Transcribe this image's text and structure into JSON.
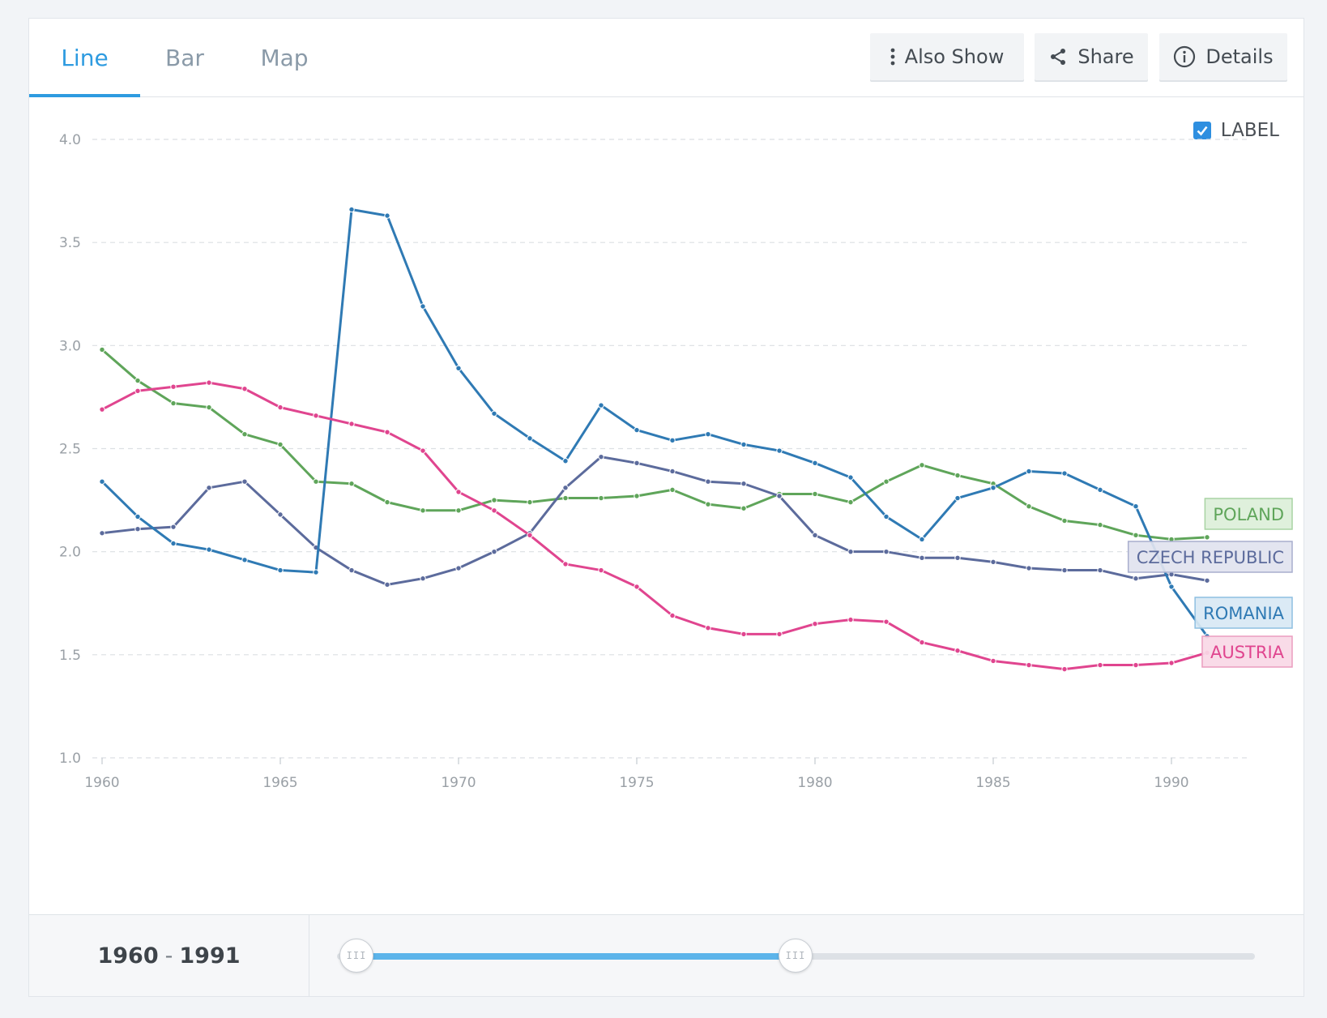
{
  "tabs": [
    {
      "label": "Line",
      "active": true
    },
    {
      "label": "Bar",
      "active": false
    },
    {
      "label": "Map",
      "active": false
    }
  ],
  "toolbar": {
    "also_show": "Also Show",
    "share": "Share",
    "details": "Details"
  },
  "label_toggle": {
    "label": "LABEL",
    "checked": true
  },
  "range": {
    "start": "1960",
    "end": "1991",
    "separator": "-"
  },
  "slider": {
    "min": 1960,
    "max": 2020,
    "start": 1960,
    "end": 1991
  },
  "chart_data": {
    "type": "line",
    "x": [
      1960,
      1961,
      1962,
      1963,
      1964,
      1965,
      1966,
      1967,
      1968,
      1969,
      1970,
      1971,
      1972,
      1973,
      1974,
      1975,
      1976,
      1977,
      1978,
      1979,
      1980,
      1981,
      1982,
      1983,
      1984,
      1985,
      1986,
      1987,
      1988,
      1989,
      1990,
      1991
    ],
    "xlim": [
      1960,
      1992
    ],
    "ylim": [
      1.0,
      4.0
    ],
    "yticks": [
      "1.0",
      "1.5",
      "2.0",
      "2.5",
      "3.0",
      "3.5",
      "4.0"
    ],
    "xticks": [
      "1960",
      "1965",
      "1970",
      "1975",
      "1980",
      "1985",
      "1990"
    ],
    "grid": true,
    "series": [
      {
        "name": "POLAND",
        "color": "#5fa55a",
        "label_bg": "#dcefd9",
        "label_border": "#a9d4a3",
        "values": [
          2.98,
          2.83,
          2.72,
          2.7,
          2.57,
          2.52,
          2.34,
          2.33,
          2.24,
          2.2,
          2.2,
          2.25,
          2.24,
          2.26,
          2.26,
          2.27,
          2.3,
          2.23,
          2.21,
          2.28,
          2.28,
          2.24,
          2.34,
          2.42,
          2.37,
          2.33,
          2.22,
          2.15,
          2.13,
          2.08,
          2.06,
          2.07
        ]
      },
      {
        "name": "CZECH REPUBLIC",
        "color": "#5c6b9c",
        "label_bg": "#e1e3ef",
        "label_border": "#a8aecd",
        "values": [
          2.09,
          2.11,
          2.12,
          2.31,
          2.34,
          2.18,
          2.02,
          1.91,
          1.84,
          1.87,
          1.92,
          2.0,
          2.09,
          2.31,
          2.46,
          2.43,
          2.39,
          2.34,
          2.33,
          2.27,
          2.08,
          2.0,
          2.0,
          1.97,
          1.97,
          1.95,
          1.92,
          1.91,
          1.91,
          1.87,
          1.89,
          1.86
        ]
      },
      {
        "name": "ROMANIA",
        "color": "#2f7ab4",
        "label_bg": "#d8e8f4",
        "label_border": "#8ebfe1",
        "values": [
          2.34,
          2.17,
          2.04,
          2.01,
          1.96,
          1.91,
          1.9,
          3.66,
          3.63,
          3.19,
          2.89,
          2.67,
          2.55,
          2.44,
          2.71,
          2.59,
          2.54,
          2.57,
          2.52,
          2.49,
          2.43,
          2.36,
          2.17,
          2.06,
          2.26,
          2.31,
          2.39,
          2.38,
          2.3,
          2.22,
          1.83,
          1.59
        ]
      },
      {
        "name": "AUSTRIA",
        "color": "#e0458f",
        "label_bg": "#f8d8e6",
        "label_border": "#eb9dbf",
        "values": [
          2.69,
          2.78,
          2.8,
          2.82,
          2.79,
          2.7,
          2.66,
          2.62,
          2.58,
          2.49,
          2.29,
          2.2,
          2.08,
          1.94,
          1.91,
          1.83,
          1.69,
          1.63,
          1.6,
          1.6,
          1.65,
          1.67,
          1.66,
          1.56,
          1.52,
          1.47,
          1.45,
          1.43,
          1.45,
          1.45,
          1.46,
          1.51
        ]
      }
    ]
  }
}
